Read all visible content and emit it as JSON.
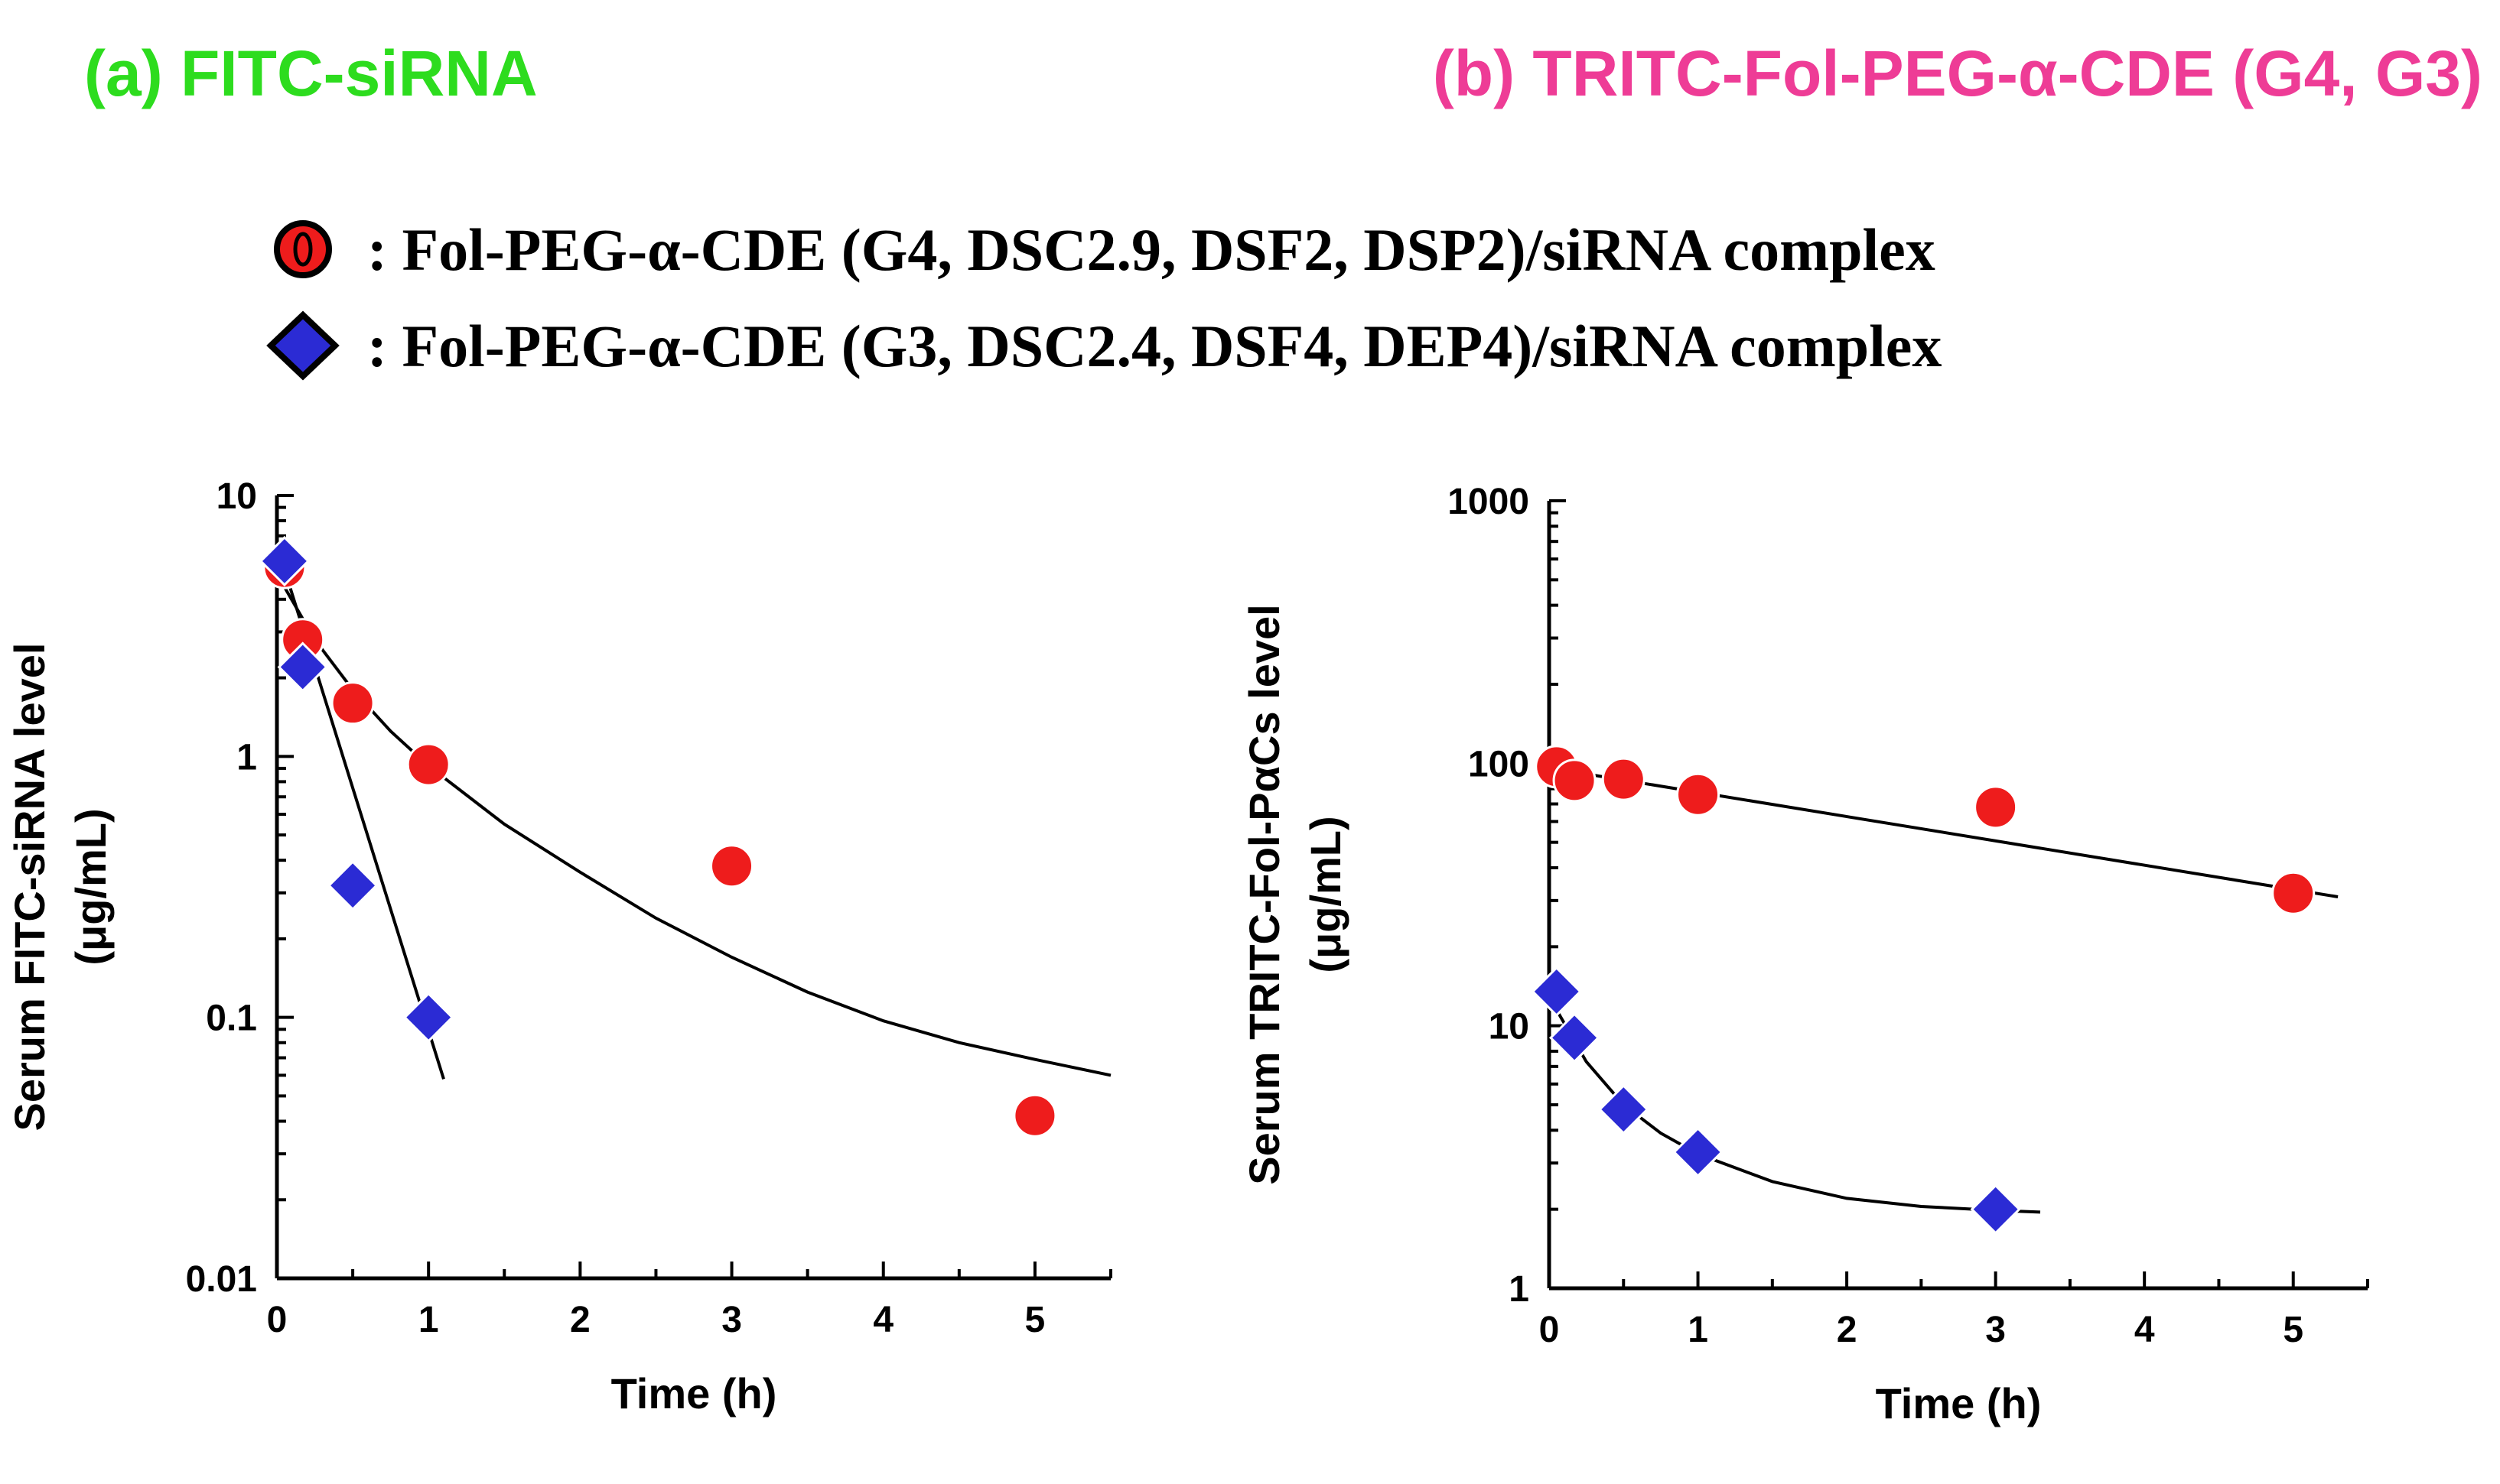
{
  "titles": {
    "a": "(a) FITC-siRNA",
    "b": "(b) TRITC-Fol-PEG-α-CDE (G4, G3)"
  },
  "legend": {
    "g4": ": Fol-PEG-α-CDE (G4, DSC2.9, DSF2, DSP2)/siRNA complex",
    "g3": ": Fol-PEG-α-CDE (G3, DSC2.4, DSF4, DEP4)/siRNA complex"
  },
  "colors": {
    "title_a": "#2ddc1e",
    "title_b": "#ee3c96",
    "circle": "#ee1c1c",
    "diamond": "#2b2bd4"
  },
  "chart_data": [
    {
      "type": "scatter",
      "panel": "a",
      "xlabel": "Time (h)",
      "ylabel_line1": "Serum FITC-siRNA level",
      "ylabel_line2": "(μg/mL)",
      "yscale": "log",
      "xlim": [
        0,
        5.5
      ],
      "ylim": [
        0.01,
        10
      ],
      "xticks": [
        0,
        1,
        2,
        3,
        4,
        5
      ],
      "xtick_labels": [
        "0",
        "1",
        "2",
        "3",
        "4",
        "5"
      ],
      "yticks": [
        0.01,
        0.1,
        1,
        10
      ],
      "ytick_labels": [
        "0.01",
        "0.1",
        "1",
        "10"
      ],
      "series": [
        {
          "name": "Fol-PEG-α-CDE (G4, DSC2.9, DSF2, DSP2)/siRNA complex",
          "marker": "circle",
          "x": [
            0.05,
            0.17,
            0.5,
            1,
            3,
            5
          ],
          "y": [
            5.3,
            2.8,
            1.6,
            0.93,
            0.38,
            0.042
          ],
          "fit_x": [
            0,
            0.25,
            0.5,
            0.75,
            1,
            1.5,
            2,
            2.5,
            3,
            3.5,
            4,
            4.5,
            5,
            5.5
          ],
          "fit_y": [
            5.0,
            2.8,
            1.8,
            1.25,
            0.92,
            0.55,
            0.36,
            0.24,
            0.17,
            0.125,
            0.097,
            0.08,
            0.069,
            0.06
          ]
        },
        {
          "name": "Fol-PEG-α-CDE (G3, DSC2.4, DSF4, DEP4)/siRNA complex",
          "marker": "diamond",
          "x": [
            0.05,
            0.17,
            0.5,
            1
          ],
          "y": [
            5.6,
            2.2,
            0.32,
            0.1
          ],
          "fit_x": [
            0.05,
            1.1
          ],
          "fit_y": [
            5.2,
            0.058
          ]
        }
      ]
    },
    {
      "type": "scatter",
      "panel": "b",
      "xlabel": "Time (h)",
      "ylabel_line1": "Serum TRITC-Fol-PαCs level",
      "ylabel_line2": "(μg/mL)",
      "yscale": "log",
      "xlim": [
        0,
        5.5
      ],
      "ylim": [
        1,
        1000
      ],
      "xticks": [
        0,
        1,
        2,
        3,
        4,
        5
      ],
      "xtick_labels": [
        "0",
        "1",
        "2",
        "3",
        "4",
        "5"
      ],
      "yticks": [
        1,
        10,
        100,
        1000
      ],
      "ytick_labels": [
        "1",
        "10",
        "100",
        "1000"
      ],
      "series": [
        {
          "name": "Fol-PEG-α-CDE (G4, DSC2.9, DSF2, DSP2)/siRNA complex",
          "marker": "circle",
          "x": [
            0.05,
            0.17,
            0.5,
            1,
            3,
            5
          ],
          "y": [
            97,
            86,
            87,
            76,
            68,
            32
          ],
          "fit_x": [
            0.05,
            5.3
          ],
          "fit_y": [
            95,
            31
          ]
        },
        {
          "name": "Fol-PEG-α-CDE (G3, DSC2.4, DSF4, DEP4)/siRNA complex",
          "marker": "diamond",
          "x": [
            0.05,
            0.17,
            0.5,
            1,
            3
          ],
          "y": [
            13.5,
            9,
            4.8,
            3.3,
            2.0
          ],
          "fit_x": [
            0.05,
            0.25,
            0.5,
            0.75,
            1,
            1.5,
            2,
            2.5,
            3,
            3.3
          ],
          "fit_y": [
            11.5,
            7.3,
            5.0,
            3.9,
            3.25,
            2.55,
            2.2,
            2.05,
            1.98,
            1.95
          ]
        }
      ]
    }
  ]
}
